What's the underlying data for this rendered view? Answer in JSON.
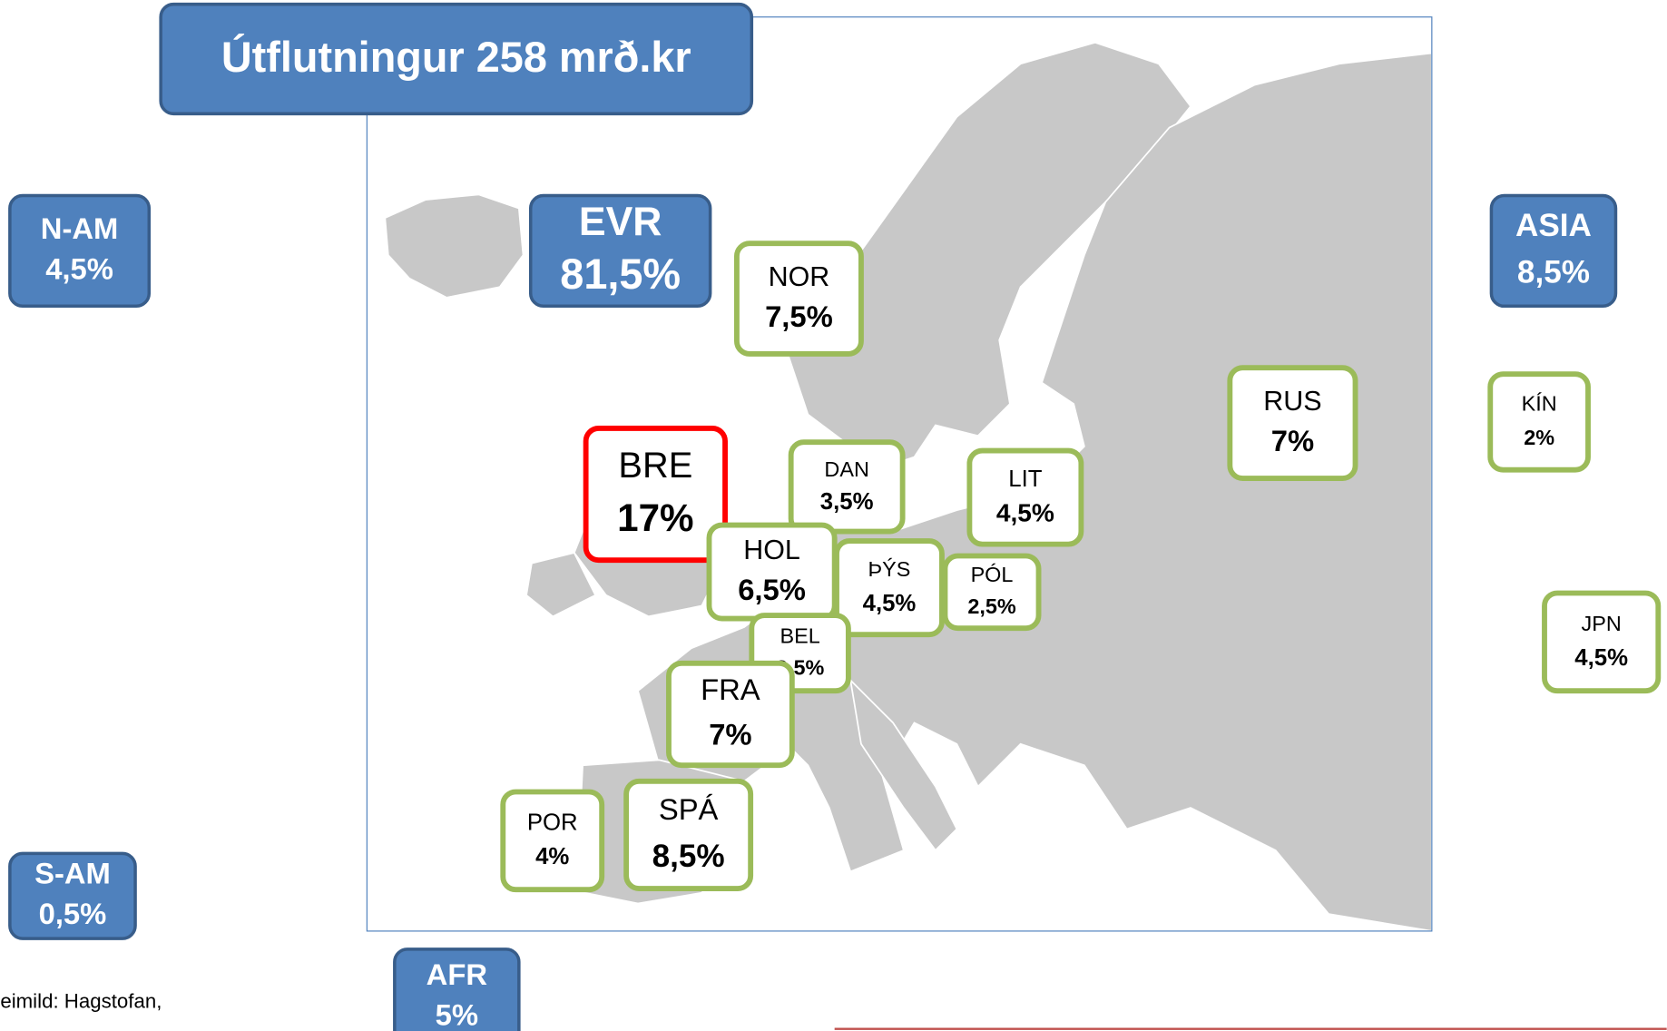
{
  "title": "Útflutningur 258 mrð.kr",
  "regions": [
    {
      "name": "N-AM",
      "share": "4,5%"
    },
    {
      "name": "EVR",
      "share": "81,5%"
    },
    {
      "name": "ASIA",
      "share": "8,5%"
    },
    {
      "name": "S-AM",
      "share": "0,5%"
    },
    {
      "name": "AFR",
      "share": "5%"
    }
  ],
  "countries": [
    {
      "name": "NOR",
      "share": "7,5%"
    },
    {
      "name": "RUS",
      "share": "7%"
    },
    {
      "name": "KÍN",
      "share": "2%"
    },
    {
      "name": "BRE",
      "share": "17%"
    },
    {
      "name": "DAN",
      "share": "3,5%"
    },
    {
      "name": "LIT",
      "share": "4,5%"
    },
    {
      "name": "HOL",
      "share": "6,5%"
    },
    {
      "name": "ÞÝS",
      "share": "4,5%"
    },
    {
      "name": "PÓL",
      "share": "2,5%"
    },
    {
      "name": "BEL",
      "share": "3,5%"
    },
    {
      "name": "FRA",
      "share": "7%"
    },
    {
      "name": "JPN",
      "share": "4,5%"
    },
    {
      "name": "POR",
      "share": "4%"
    },
    {
      "name": "SPÁ",
      "share": "8,5%"
    }
  ],
  "source": "eimild: Hagstofan,"
}
